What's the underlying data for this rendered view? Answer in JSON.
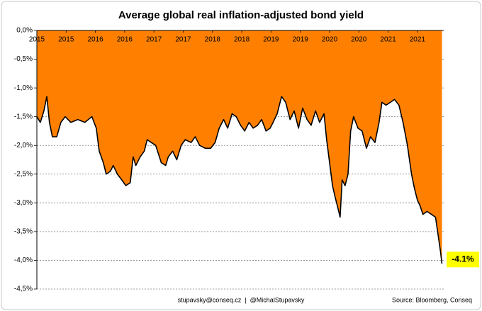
{
  "chart_data": {
    "type": "area",
    "title": "Average global real inflation-adjusted bond yield",
    "footer": "stupavsky@conseq.cz  |  @MichalStupavsky",
    "source": "Source: Bloomberg, Conseq",
    "annotation": "-4.1%",
    "color": "#ff8000",
    "line_color": "#000000",
    "grid": true,
    "xlim": [
      0,
      13.9
    ],
    "xticks": [
      {
        "value": 0,
        "label": "2015"
      },
      {
        "value": 1,
        "label": "2015"
      },
      {
        "value": 2,
        "label": "2016"
      },
      {
        "value": 3,
        "label": "2016"
      },
      {
        "value": 4,
        "label": "2017"
      },
      {
        "value": 5,
        "label": "2017"
      },
      {
        "value": 6,
        "label": "2018"
      },
      {
        "value": 7,
        "label": "2018"
      },
      {
        "value": 8,
        "label": "2019"
      },
      {
        "value": 9,
        "label": "2019"
      },
      {
        "value": 10,
        "label": "2020"
      },
      {
        "value": 11,
        "label": "2020"
      },
      {
        "value": 12,
        "label": "2021"
      },
      {
        "value": 13,
        "label": "2021"
      }
    ],
    "ylim": [
      -4.5,
      0
    ],
    "yticks": [
      {
        "value": 0,
        "label": "0,0%"
      },
      {
        "value": -0.5,
        "label": "-0,5%"
      },
      {
        "value": -1,
        "label": "-1,0%"
      },
      {
        "value": -1.5,
        "label": "-1,5%"
      },
      {
        "value": -2,
        "label": "-2,0%"
      },
      {
        "value": -2.5,
        "label": "-2,5%"
      },
      {
        "value": -3,
        "label": "-3,0%"
      },
      {
        "value": -3.5,
        "label": "-3,5%"
      },
      {
        "value": -4,
        "label": "-4,0%"
      },
      {
        "value": -4.5,
        "label": "-4,5%"
      }
    ],
    "x": [
      0,
      0.12,
      0.24,
      0.34,
      0.43,
      0.53,
      0.68,
      0.82,
      0.97,
      1.16,
      1.4,
      1.64,
      1.88,
      2.03,
      2.13,
      2.27,
      2.37,
      2.51,
      2.61,
      2.75,
      2.9,
      3.04,
      3.19,
      3.29,
      3.38,
      3.53,
      3.67,
      3.77,
      3.91,
      4.06,
      4.25,
      4.4,
      4.49,
      4.64,
      4.78,
      4.93,
      5.07,
      5.27,
      5.41,
      5.56,
      5.75,
      5.94,
      6.09,
      6.23,
      6.38,
      6.52,
      6.67,
      6.81,
      6.96,
      7.1,
      7.25,
      7.39,
      7.54,
      7.68,
      7.83,
      7.97,
      8.07,
      8.21,
      8.36,
      8.5,
      8.65,
      8.79,
      8.94,
      9.08,
      9.23,
      9.37,
      9.52,
      9.66,
      9.81,
      9.9,
      10.0,
      10.1,
      10.19,
      10.29,
      10.36,
      10.43,
      10.53,
      10.63,
      10.72,
      10.82,
      10.97,
      11.11,
      11.26,
      11.4,
      11.55,
      11.69,
      11.79,
      11.93,
      12.08,
      12.22,
      12.37,
      12.51,
      12.66,
      12.8,
      12.9,
      13.0,
      13.09,
      13.19,
      13.33,
      13.48,
      13.62,
      13.72,
      13.79,
      13.84
    ],
    "values": [
      -1.5,
      -1.6,
      -1.4,
      -1.15,
      -1.6,
      -1.85,
      -1.85,
      -1.6,
      -1.5,
      -1.6,
      -1.55,
      -1.6,
      -1.5,
      -1.7,
      -2.1,
      -2.3,
      -2.5,
      -2.45,
      -2.35,
      -2.5,
      -2.6,
      -2.7,
      -2.65,
      -2.2,
      -2.35,
      -2.2,
      -2.1,
      -1.9,
      -1.95,
      -2.0,
      -2.3,
      -2.35,
      -2.2,
      -2.1,
      -2.25,
      -2.0,
      -1.9,
      -1.95,
      -1.85,
      -2.0,
      -2.05,
      -2.05,
      -1.95,
      -1.7,
      -1.55,
      -1.7,
      -1.45,
      -1.5,
      -1.65,
      -1.75,
      -1.6,
      -1.7,
      -1.65,
      -1.55,
      -1.75,
      -1.7,
      -1.6,
      -1.45,
      -1.15,
      -1.25,
      -1.55,
      -1.4,
      -1.7,
      -1.35,
      -1.55,
      -1.65,
      -1.4,
      -1.6,
      -1.45,
      -1.9,
      -2.3,
      -2.7,
      -2.9,
      -3.1,
      -3.25,
      -2.6,
      -2.7,
      -2.5,
      -1.75,
      -1.5,
      -1.7,
      -1.75,
      -2.05,
      -1.85,
      -1.95,
      -1.6,
      -1.25,
      -1.3,
      -1.25,
      -1.2,
      -1.3,
      -1.6,
      -2.0,
      -2.5,
      -2.75,
      -2.95,
      -3.05,
      -3.2,
      -3.15,
      -3.2,
      -3.25,
      -3.6,
      -3.85,
      -4.06
    ]
  }
}
